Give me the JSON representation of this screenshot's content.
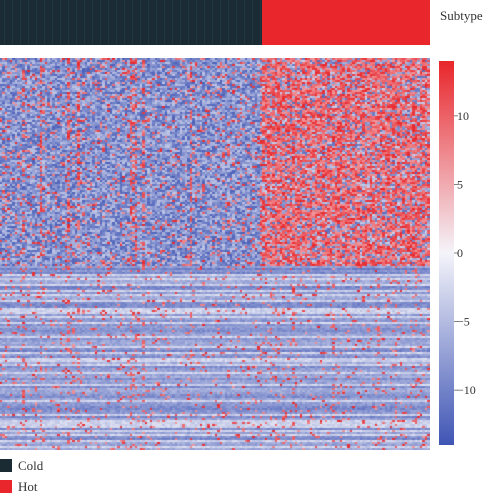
{
  "chart_data": {
    "type": "heatmap",
    "annotation_track": {
      "label": "Subtype",
      "groups": [
        {
          "name": "Cold",
          "color": "#1b2b33",
          "fraction": 0.61
        },
        {
          "name": "Hot",
          "color": "#e8262b",
          "fraction": 0.39
        }
      ]
    },
    "color_scale": {
      "min": -14,
      "max": 14,
      "low_color": "#3f55b4",
      "mid_color": "#f4f4fa",
      "high_color": "#e8262b",
      "ticks": [
        {
          "value": 10,
          "label": "10"
        },
        {
          "value": 5,
          "label": "5"
        },
        {
          "value": 0,
          "label": "0"
        },
        {
          "value": -5,
          "label": "−5"
        },
        {
          "value": -10,
          "label": "−10"
        }
      ]
    },
    "legend": [
      {
        "label": "Cold",
        "color": "#1b2b33"
      },
      {
        "label": "Hot",
        "color": "#e8262b"
      }
    ],
    "grid": false,
    "legend_placement": "bottom-left"
  }
}
